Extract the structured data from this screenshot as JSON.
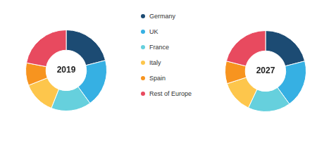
{
  "chart_data": [
    {
      "type": "doughnut",
      "title": "2019",
      "categories": [
        "Germany",
        "UK",
        "France",
        "Italy",
        "Spain",
        "Rest of Europe"
      ],
      "values": [
        21,
        19,
        16,
        13,
        9,
        22
      ],
      "colors": [
        "#1c4b73",
        "#36b0e3",
        "#66d0dd",
        "#fdc64c",
        "#f7941f",
        "#e84a5f"
      ],
      "legend": "right"
    },
    {
      "type": "doughnut",
      "title": "2027",
      "categories": [
        "Germany",
        "UK",
        "France",
        "Italy",
        "Spain",
        "Rest of Europe"
      ],
      "values": [
        21,
        19,
        17,
        13,
        9,
        21
      ],
      "colors": [
        "#1c4b73",
        "#36b0e3",
        "#66d0dd",
        "#fdc64c",
        "#f7941f",
        "#e84a5f"
      ]
    }
  ]
}
